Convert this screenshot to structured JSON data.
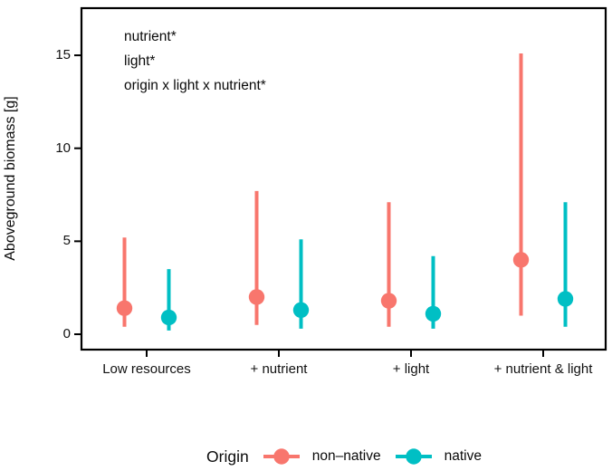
{
  "chart_data": {
    "type": "pointrange",
    "title": "",
    "ylabel": "Aboveground biomass [g]",
    "xlabel": "",
    "categories": [
      "Low resources",
      "+ nutrient",
      "+ light",
      "+ nutrient & light"
    ],
    "series": [
      {
        "name": "non–native",
        "color": "#F8766D",
        "means": [
          1.4,
          2.0,
          1.8,
          4.0
        ],
        "ci_low": [
          0.4,
          0.5,
          0.4,
          1.0
        ],
        "ci_high": [
          5.2,
          7.7,
          7.1,
          15.1
        ]
      },
      {
        "name": "native",
        "color": "#00BFC4",
        "means": [
          0.9,
          1.3,
          1.1,
          1.9
        ],
        "ci_low": [
          0.2,
          0.3,
          0.3,
          0.4
        ],
        "ci_high": [
          3.5,
          5.1,
          4.2,
          7.1
        ]
      }
    ],
    "yticks": [
      0,
      5,
      10,
      15
    ],
    "ylim": [
      -0.8,
      17.5
    ],
    "grid": "off",
    "legend_position": "bottom",
    "annotations": [
      "nutrient*",
      "light*",
      "origin x light x nutrient*"
    ],
    "legend": {
      "title": "Origin"
    }
  }
}
